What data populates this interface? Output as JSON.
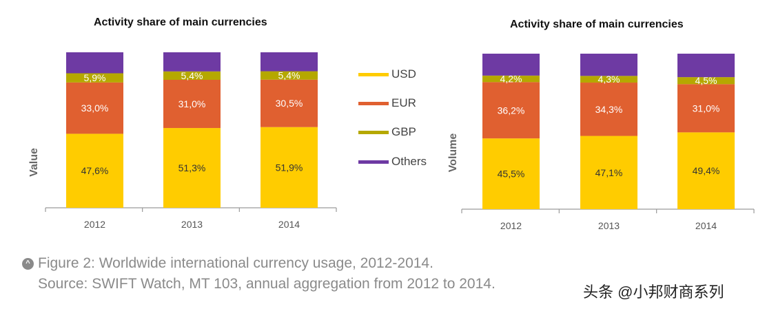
{
  "legend": [
    {
      "label": "USD",
      "color": "#FFCC00"
    },
    {
      "label": "EUR",
      "color": "#E06030"
    },
    {
      "label": "GBP",
      "color": "#B5A800"
    },
    {
      "label": "Others",
      "color": "#6E3AA3"
    }
  ],
  "chart_data": [
    {
      "type": "bar",
      "stacked": true,
      "title": "Activity share of main currencies",
      "ylabel": "Value",
      "xlabel": "",
      "categories": [
        "2012",
        "2013",
        "2014"
      ],
      "series": [
        {
          "name": "USD",
          "values": [
            47.6,
            51.3,
            51.9
          ],
          "labels": [
            "47,6%",
            "51,3%",
            "51,9%"
          ]
        },
        {
          "name": "EUR",
          "values": [
            33.0,
            31.0,
            30.5
          ],
          "labels": [
            "33,0%",
            "31,0%",
            "30,5%"
          ]
        },
        {
          "name": "GBP",
          "values": [
            5.9,
            5.4,
            5.4
          ],
          "labels": [
            "5,9%",
            "5,4%",
            "5,4%"
          ]
        },
        {
          "name": "Others",
          "values": [
            13.5,
            12.3,
            12.2
          ],
          "labels": [
            "",
            "",
            ""
          ]
        }
      ],
      "ylim": [
        0,
        100
      ]
    },
    {
      "type": "bar",
      "stacked": true,
      "title": "Activity share of main currencies",
      "ylabel": "Volume",
      "xlabel": "",
      "categories": [
        "2012",
        "2013",
        "2014"
      ],
      "series": [
        {
          "name": "USD",
          "values": [
            45.5,
            47.1,
            49.4
          ],
          "labels": [
            "45,5%",
            "47,1%",
            "49,4%"
          ]
        },
        {
          "name": "EUR",
          "values": [
            36.2,
            34.3,
            31.0
          ],
          "labels": [
            "36,2%",
            "34,3%",
            "31,0%"
          ]
        },
        {
          "name": "GBP",
          "values": [
            4.2,
            4.3,
            4.5
          ],
          "labels": [
            "4,2%",
            "4,3%",
            "4,5%"
          ]
        },
        {
          "name": "Others",
          "values": [
            14.1,
            14.3,
            15.1
          ],
          "labels": [
            "",
            "",
            ""
          ]
        }
      ],
      "ylim": [
        0,
        100
      ]
    }
  ],
  "caption": {
    "icon": "chevron-up-icon",
    "line1": "Figure 2: Worldwide international currency usage, 2012-2014.",
    "line2": "Source: SWIFT Watch, MT 103, annual aggregation from 2012 to 2014."
  },
  "watermark": "头条 @小邦财商系列"
}
